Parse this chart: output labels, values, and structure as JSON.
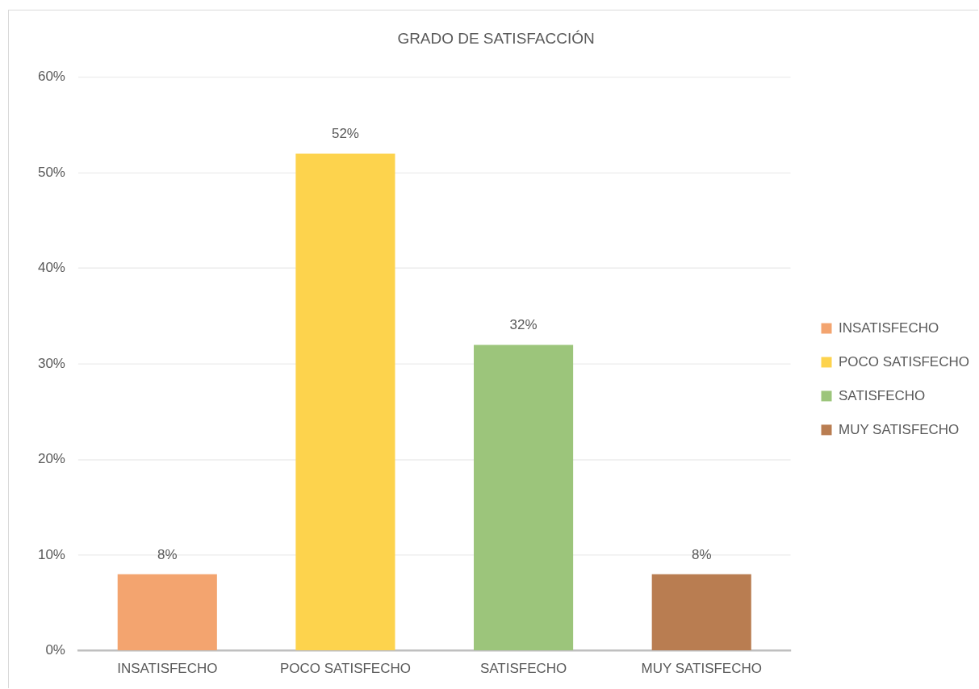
{
  "chart_data": {
    "type": "bar",
    "title": "GRADO DE SATISFACCIÓN",
    "categories": [
      "INSATISFECHO",
      "POCO SATISFECHO",
      "SATISFECHO",
      "MUY SATISFECHO"
    ],
    "series": [
      {
        "name": "INSATISFECHO",
        "color": "#f3a46f",
        "values": [
          8,
          null,
          null,
          null
        ],
        "value_labels": [
          "8%",
          null,
          null,
          null
        ]
      },
      {
        "name": "POCO SATISFECHO",
        "color": "#fdd34d",
        "values": [
          null,
          52,
          null,
          null
        ],
        "value_labels": [
          null,
          "52%",
          null,
          null
        ]
      },
      {
        "name": "SATISFECHO",
        "color": "#9cc57b",
        "values": [
          null,
          null,
          32,
          null
        ],
        "value_labels": [
          null,
          null,
          "32%",
          null
        ]
      },
      {
        "name": "MUY SATISFECHO",
        "color": "#b97d51",
        "values": [
          null,
          null,
          null,
          8
        ],
        "value_labels": [
          null,
          null,
          null,
          "8%"
        ]
      }
    ],
    "ylim": [
      0,
      60
    ],
    "yticks": [
      {
        "value": 0,
        "label": "0%"
      },
      {
        "value": 10,
        "label": "10%"
      },
      {
        "value": 20,
        "label": "20%"
      },
      {
        "value": 30,
        "label": "30%"
      },
      {
        "value": 40,
        "label": "40%"
      },
      {
        "value": 50,
        "label": "50%"
      },
      {
        "value": 60,
        "label": "60%"
      }
    ],
    "grid": "y",
    "legend": "right"
  }
}
